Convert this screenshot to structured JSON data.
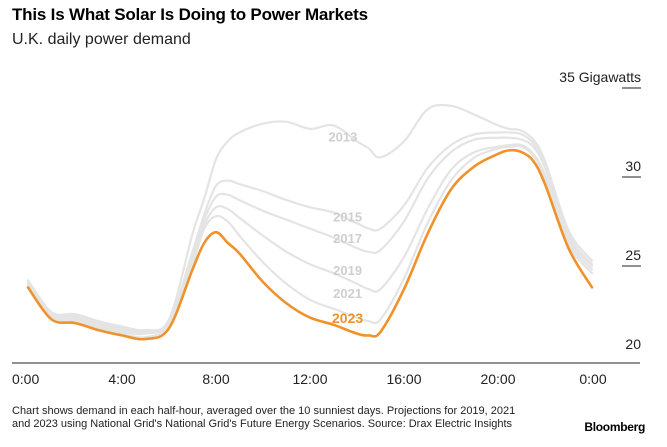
{
  "title": "This Is What Solar Is Doing to Power Markets",
  "subtitle": "U.K. daily power demand",
  "footnote": "Chart shows demand in each half-hour, averaged over the 10 sunniest days. Projections for 2019, 2021 and 2023 using National Grid's National Grid's Future Energy Scenarios. Source: Drax Electric Insights",
  "brand": "Bloomberg",
  "colors": {
    "highlight": "#f0922b",
    "muted": "#e4e4e4",
    "axis": "#222222"
  },
  "chart_data": {
    "type": "line",
    "title": "This Is What Solar Is Doing to Power Markets",
    "subtitle": "U.K. daily power demand",
    "x": [
      0,
      1,
      2,
      3,
      4,
      5,
      6,
      7,
      7.5,
      8,
      8.5,
      9,
      10,
      11,
      12,
      13,
      14,
      14.5,
      15,
      16,
      17,
      18,
      19,
      20,
      20.5,
      21,
      21.5,
      22,
      23,
      24
    ],
    "xlim": [
      0,
      24
    ],
    "xticks": [
      0,
      4,
      8,
      12,
      16,
      20,
      24
    ],
    "xtick_labels": [
      "0:00",
      "4:00",
      "8:00",
      "12:00",
      "16:00",
      "20:00",
      "0:00"
    ],
    "ylim": [
      20,
      35
    ],
    "yticks": [
      20,
      25,
      30,
      35
    ],
    "ytick_labels": [
      "20",
      "25",
      "30",
      "35 Gigawatts"
    ],
    "highlight_series": "2023",
    "series": [
      {
        "name": "2013",
        "label_x": 13.4,
        "label_y": 32.0,
        "values": [
          24.2,
          22.4,
          22.3,
          21.9,
          21.6,
          21.4,
          22.0,
          26.8,
          28.8,
          31.0,
          32.0,
          32.5,
          33.0,
          33.1,
          32.7,
          32.9,
          32.0,
          31.6,
          31.1,
          32.0,
          33.8,
          34.0,
          33.5,
          32.9,
          32.7,
          32.6,
          32.1,
          30.9,
          27.0,
          25.3
        ]
      },
      {
        "name": "2015",
        "label_x": 13.6,
        "label_y": 27.5,
        "values": [
          24.1,
          22.3,
          22.2,
          21.8,
          21.5,
          21.3,
          21.9,
          25.8,
          27.9,
          29.5,
          29.8,
          29.6,
          29.2,
          28.7,
          28.3,
          28.0,
          27.4,
          27.1,
          27.1,
          28.4,
          30.5,
          31.8,
          32.4,
          32.5,
          32.5,
          32.4,
          31.9,
          30.7,
          26.8,
          25.1
        ]
      },
      {
        "name": "2017",
        "label_x": 13.6,
        "label_y": 26.3,
        "values": [
          24.1,
          22.3,
          22.1,
          21.7,
          21.4,
          21.3,
          21.9,
          25.6,
          27.6,
          28.9,
          29.0,
          28.7,
          28.1,
          27.6,
          27.1,
          26.6,
          26.0,
          25.8,
          25.9,
          27.5,
          29.9,
          31.4,
          32.1,
          32.2,
          32.2,
          32.1,
          31.7,
          30.5,
          26.6,
          25.0
        ]
      },
      {
        "name": "2019",
        "label_x": 13.6,
        "label_y": 24.5,
        "values": [
          24.0,
          22.2,
          22.0,
          21.6,
          21.3,
          21.2,
          21.8,
          25.3,
          27.3,
          28.3,
          28.2,
          27.7,
          26.7,
          25.8,
          25.1,
          24.6,
          24.0,
          23.7,
          23.7,
          25.5,
          28.2,
          30.4,
          31.4,
          31.7,
          31.8,
          31.8,
          31.3,
          30.1,
          26.4,
          24.8
        ]
      },
      {
        "name": "2021",
        "label_x": 13.6,
        "label_y": 23.2,
        "values": [
          24.0,
          22.1,
          21.9,
          21.5,
          21.2,
          21.0,
          21.7,
          25.1,
          27.1,
          27.8,
          27.5,
          26.7,
          25.2,
          24.0,
          23.1,
          22.6,
          22.1,
          21.9,
          22.0,
          24.3,
          27.4,
          29.8,
          31.1,
          31.6,
          31.7,
          31.7,
          31.2,
          29.9,
          26.2,
          24.6
        ]
      },
      {
        "name": "2023",
        "label_x": 13.6,
        "label_y": 21.8,
        "values": [
          23.8,
          22.0,
          21.8,
          21.4,
          21.1,
          20.9,
          21.5,
          24.8,
          26.3,
          26.9,
          26.3,
          25.7,
          24.1,
          22.9,
          22.1,
          21.7,
          21.2,
          21.1,
          21.3,
          23.7,
          26.8,
          29.3,
          30.6,
          31.3,
          31.5,
          31.4,
          30.9,
          29.6,
          26.0,
          23.8
        ]
      }
    ]
  }
}
